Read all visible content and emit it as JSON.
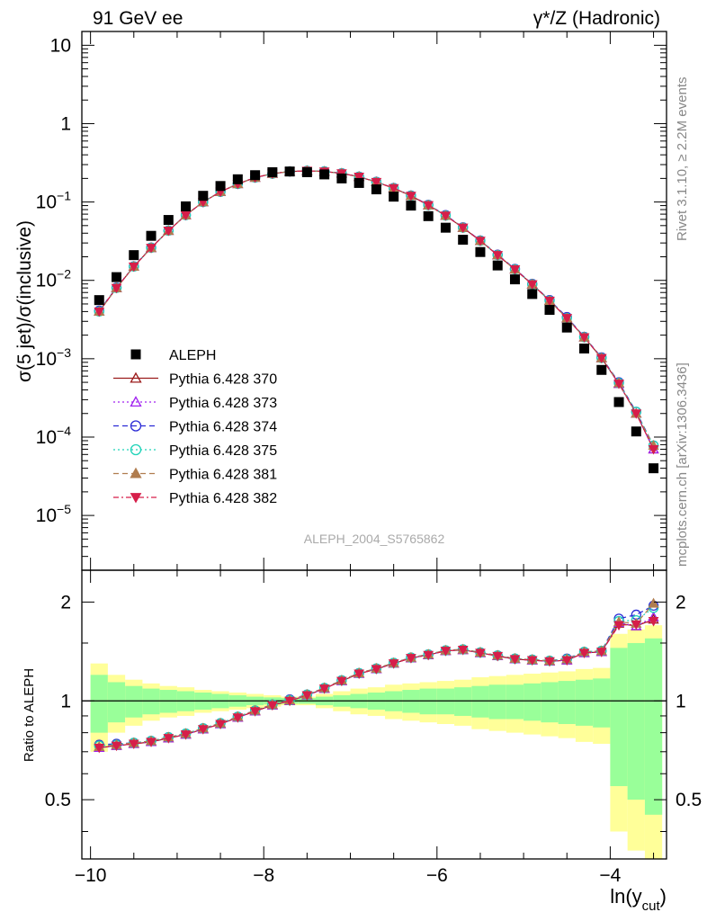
{
  "header": {
    "left": "91 GeV ee",
    "right": "γ*/Z (Hadronic)"
  },
  "side_texts": {
    "rivet": "Rivet 3.1.10, ≥ 2.2M events",
    "mcplots": "mcplots.cern.ch [arXiv:1306.3436]"
  },
  "analysis_label": "ALEPH_2004_S5765862",
  "chart_data": [
    {
      "type": "scatter",
      "panel": "main",
      "ylabel": "σ(5 jet)/σ(inclusive)",
      "yscale": "log",
      "ylim": [
        2e-06,
        15
      ],
      "xlim": [
        -10.1,
        -3.35
      ],
      "ytick_labels": [
        "10",
        "1",
        "10^-1",
        "10^-2",
        "10^-3",
        "10^-4",
        "10^-5"
      ],
      "x": [
        -9.9,
        -9.7,
        -9.5,
        -9.3,
        -9.1,
        -8.9,
        -8.7,
        -8.5,
        -8.3,
        -8.1,
        -7.9,
        -7.7,
        -7.5,
        -7.3,
        -7.1,
        -6.9,
        -6.7,
        -6.5,
        -6.3,
        -6.1,
        -5.9,
        -5.7,
        -5.5,
        -5.3,
        -5.1,
        -4.9,
        -4.7,
        -4.5,
        -4.3,
        -4.1,
        -3.9,
        -3.7,
        -3.5
      ],
      "series": [
        {
          "name": "ALEPH",
          "marker": "square",
          "color": "#000000",
          "values": [
            0.0056,
            0.011,
            0.021,
            0.037,
            0.059,
            0.088,
            0.12,
            0.16,
            0.195,
            0.22,
            0.24,
            0.245,
            0.24,
            0.225,
            0.2,
            0.175,
            0.145,
            0.117,
            0.09,
            0.066,
            0.047,
            0.033,
            0.023,
            0.0155,
            0.0103,
            0.0067,
            0.0042,
            0.0025,
            0.00135,
            0.00072,
            0.00028,
            0.000118,
            4e-05
          ]
        },
        {
          "name": "Pythia 6.428 370",
          "marker": "triangle-open",
          "color": "#9b1b1b",
          "dash": "",
          "values": [
            0.004,
            0.008,
            0.015,
            0.026,
            0.043,
            0.068,
            0.1,
            0.135,
            0.17,
            0.205,
            0.23,
            0.245,
            0.25,
            0.245,
            0.232,
            0.21,
            0.18,
            0.15,
            0.12,
            0.091,
            0.067,
            0.047,
            0.032,
            0.021,
            0.0138,
            0.0089,
            0.0055,
            0.0033,
            0.00188,
            0.00102,
            0.00048,
            0.0002,
            7e-05
          ]
        },
        {
          "name": "Pythia 6.428 373",
          "marker": "triangle-open",
          "color": "#a020f0",
          "dash": "2,3",
          "values": [
            0.004,
            0.008,
            0.015,
            0.026,
            0.043,
            0.068,
            0.1,
            0.135,
            0.17,
            0.205,
            0.23,
            0.245,
            0.25,
            0.245,
            0.232,
            0.21,
            0.18,
            0.15,
            0.12,
            0.091,
            0.067,
            0.047,
            0.032,
            0.021,
            0.0138,
            0.0089,
            0.0055,
            0.0033,
            0.00188,
            0.00102,
            0.00048,
            0.0002,
            7e-05
          ]
        },
        {
          "name": "Pythia 6.428 374",
          "marker": "circle-open",
          "color": "#2b2bd6",
          "dash": "6,4",
          "values": [
            0.0041,
            0.0081,
            0.0151,
            0.0262,
            0.0432,
            0.0682,
            0.1,
            0.135,
            0.17,
            0.205,
            0.23,
            0.245,
            0.25,
            0.246,
            0.233,
            0.211,
            0.181,
            0.151,
            0.121,
            0.092,
            0.068,
            0.0475,
            0.0323,
            0.0213,
            0.014,
            0.009,
            0.0056,
            0.0034,
            0.0019,
            0.00104,
            0.0005,
            0.00021,
            7.8e-05
          ]
        },
        {
          "name": "Pythia 6.428 375",
          "marker": "circle-open",
          "color": "#1ed3b8",
          "dash": "2,3",
          "values": [
            0.004,
            0.008,
            0.015,
            0.026,
            0.043,
            0.068,
            0.1,
            0.135,
            0.17,
            0.205,
            0.23,
            0.245,
            0.25,
            0.245,
            0.232,
            0.21,
            0.18,
            0.15,
            0.12,
            0.091,
            0.067,
            0.047,
            0.032,
            0.021,
            0.0138,
            0.0089,
            0.0055,
            0.0033,
            0.00188,
            0.00102,
            0.00049,
            0.00021,
            7.8e-05
          ]
        },
        {
          "name": "Pythia 6.428 381",
          "marker": "triangle-filled",
          "color": "#b07d4f",
          "dash": "6,4",
          "values": [
            0.004,
            0.008,
            0.015,
            0.026,
            0.043,
            0.068,
            0.1,
            0.135,
            0.17,
            0.205,
            0.23,
            0.245,
            0.25,
            0.245,
            0.232,
            0.21,
            0.18,
            0.15,
            0.12,
            0.091,
            0.067,
            0.047,
            0.032,
            0.021,
            0.0138,
            0.0089,
            0.0055,
            0.0033,
            0.00188,
            0.00102,
            0.00049,
            0.0002,
            7.8e-05
          ]
        },
        {
          "name": "Pythia 6.428 382",
          "marker": "triangle-down-filled",
          "color": "#d61e4a",
          "dash": "6,3,2,3",
          "values": [
            0.004,
            0.008,
            0.015,
            0.026,
            0.043,
            0.068,
            0.1,
            0.135,
            0.17,
            0.205,
            0.23,
            0.245,
            0.25,
            0.245,
            0.232,
            0.21,
            0.18,
            0.15,
            0.12,
            0.091,
            0.067,
            0.047,
            0.032,
            0.021,
            0.0138,
            0.0089,
            0.0055,
            0.0033,
            0.00188,
            0.00102,
            0.00048,
            0.0002,
            7e-05
          ]
        }
      ]
    },
    {
      "type": "line",
      "panel": "ratio",
      "ylabel": "Ratio to ALEPH",
      "xlabel": "ln(y_cut)",
      "xlabel_main": "ln(y",
      "xlabel_sub": "cut",
      "xlabel_end": ")",
      "yscale": "log",
      "ylim": [
        0.33,
        2.5
      ],
      "xlim": [
        -10.1,
        -3.35
      ],
      "ytick_labels": [
        "0.5",
        "1",
        "2"
      ],
      "xtick_values": [
        -10,
        -8,
        -6,
        -4
      ],
      "xtick_labels": [
        "−10",
        "−8",
        "−6",
        "−4"
      ],
      "band_edges": [
        -10.0,
        -9.8,
        -9.6,
        -9.4,
        -9.2,
        -9.0,
        -8.8,
        -8.6,
        -8.4,
        -8.2,
        -8.0,
        -7.8,
        -7.6,
        -7.4,
        -7.2,
        -7.0,
        -6.8,
        -6.6,
        -6.4,
        -6.2,
        -6.0,
        -5.8,
        -5.6,
        -5.4,
        -5.2,
        -5.0,
        -4.8,
        -4.6,
        -4.4,
        -4.2,
        -4.0,
        -3.8,
        -3.6,
        -3.4
      ],
      "band_inner_half_width": [
        0.2,
        0.14,
        0.11,
        0.09,
        0.08,
        0.07,
        0.06,
        0.05,
        0.04,
        0.03,
        0.025,
        0.02,
        0.02,
        0.03,
        0.04,
        0.05,
        0.06,
        0.07,
        0.08,
        0.09,
        0.09,
        0.1,
        0.11,
        0.12,
        0.12,
        0.13,
        0.14,
        0.15,
        0.16,
        0.17,
        0.45,
        0.5,
        0.55
      ],
      "band_outer_half_width": [
        0.3,
        0.2,
        0.16,
        0.13,
        0.11,
        0.1,
        0.08,
        0.07,
        0.06,
        0.05,
        0.04,
        0.03,
        0.03,
        0.05,
        0.07,
        0.09,
        0.1,
        0.12,
        0.13,
        0.14,
        0.15,
        0.16,
        0.18,
        0.19,
        0.2,
        0.21,
        0.22,
        0.23,
        0.25,
        0.26,
        0.6,
        0.65,
        0.7
      ],
      "series": [
        {
          "name": "Pythia 6.428 370",
          "values": [
            0.72,
            0.73,
            0.74,
            0.75,
            0.77,
            0.79,
            0.82,
            0.85,
            0.89,
            0.93,
            0.97,
            1.0,
            1.04,
            1.09,
            1.15,
            1.21,
            1.25,
            1.3,
            1.35,
            1.38,
            1.42,
            1.43,
            1.4,
            1.37,
            1.34,
            1.33,
            1.32,
            1.33,
            1.4,
            1.41,
            1.72,
            1.69,
            1.77
          ]
        },
        {
          "name": "Pythia 6.428 373",
          "values": [
            0.72,
            0.73,
            0.74,
            0.75,
            0.77,
            0.79,
            0.82,
            0.85,
            0.89,
            0.93,
            0.97,
            1.0,
            1.04,
            1.09,
            1.15,
            1.21,
            1.25,
            1.3,
            1.35,
            1.38,
            1.42,
            1.43,
            1.4,
            1.37,
            1.34,
            1.33,
            1.32,
            1.33,
            1.4,
            1.41,
            1.73,
            1.69,
            1.8
          ]
        },
        {
          "name": "Pythia 6.428 374",
          "values": [
            0.735,
            0.74,
            0.745,
            0.755,
            0.775,
            0.795,
            0.825,
            0.855,
            0.895,
            0.935,
            0.975,
            1.01,
            1.045,
            1.095,
            1.155,
            1.215,
            1.255,
            1.305,
            1.355,
            1.385,
            1.425,
            1.435,
            1.405,
            1.375,
            1.345,
            1.335,
            1.325,
            1.345,
            1.41,
            1.42,
            1.78,
            1.83,
            1.95
          ]
        },
        {
          "name": "Pythia 6.428 375",
          "values": [
            0.73,
            0.735,
            0.745,
            0.755,
            0.775,
            0.795,
            0.825,
            0.855,
            0.895,
            0.935,
            0.975,
            1.005,
            1.045,
            1.095,
            1.155,
            1.215,
            1.255,
            1.305,
            1.355,
            1.385,
            1.425,
            1.435,
            1.405,
            1.375,
            1.345,
            1.335,
            1.325,
            1.34,
            1.41,
            1.42,
            1.75,
            1.76,
            1.92
          ]
        },
        {
          "name": "Pythia 6.428 381",
          "values": [
            0.725,
            0.735,
            0.745,
            0.755,
            0.775,
            0.795,
            0.825,
            0.855,
            0.895,
            0.935,
            0.975,
            1.005,
            1.045,
            1.095,
            1.155,
            1.215,
            1.255,
            1.305,
            1.355,
            1.385,
            1.425,
            1.435,
            1.405,
            1.375,
            1.345,
            1.335,
            1.325,
            1.34,
            1.41,
            1.42,
            1.74,
            1.72,
            1.98
          ]
        },
        {
          "name": "Pythia 6.428 382",
          "values": [
            0.72,
            0.73,
            0.74,
            0.75,
            0.77,
            0.79,
            0.82,
            0.85,
            0.89,
            0.93,
            0.97,
            1.0,
            1.04,
            1.09,
            1.15,
            1.21,
            1.25,
            1.3,
            1.35,
            1.38,
            1.42,
            1.43,
            1.4,
            1.37,
            1.34,
            1.33,
            1.32,
            1.33,
            1.4,
            1.41,
            1.7,
            1.71,
            1.75
          ]
        }
      ]
    }
  ]
}
